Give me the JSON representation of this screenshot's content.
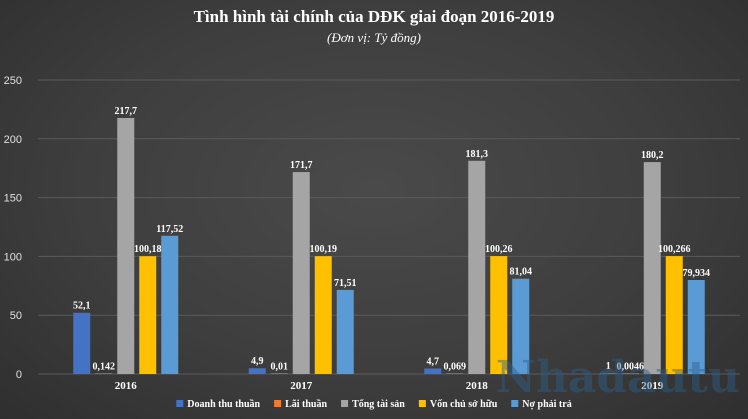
{
  "chart_data": {
    "type": "bar",
    "title": "Tình hình tài chính của DĐK giai đoạn 2016-2019",
    "subtitle": "(Đơn vị: Tỷ đồng)",
    "categories": [
      "2016",
      "2017",
      "2018",
      "2019"
    ],
    "ylim": [
      0,
      250
    ],
    "yticks": [
      0,
      50,
      100,
      150,
      200,
      250
    ],
    "grid": true,
    "legend_position": "bottom",
    "series": [
      {
        "name": "Doanh thu thuần",
        "color": "#4472c4",
        "values": [
          52.1,
          4.9,
          4.7,
          1
        ],
        "labels": [
          "52,1",
          "4,9",
          "4,7",
          "1"
        ]
      },
      {
        "name": "Lãi thuần",
        "color": "#ed7d31",
        "values": [
          0.142,
          0.01,
          0.069,
          0.0046
        ],
        "labels": [
          "0,142",
          "0,01",
          "0,069",
          "0,0046"
        ]
      },
      {
        "name": "Tổng tài sản",
        "color": "#a5a5a5",
        "values": [
          217.7,
          171.7,
          181.3,
          180.2
        ],
        "labels": [
          "217,7",
          "171,7",
          "181,3",
          "180,2"
        ]
      },
      {
        "name": "Vốn chủ sở hữu",
        "color": "#ffc000",
        "values": [
          100.18,
          100.19,
          100.26,
          100.266
        ],
        "labels": [
          "100,18",
          "100,19",
          "100,26",
          "100,266"
        ]
      },
      {
        "name": "Nợ phải trả",
        "color": "#5b9bd5",
        "values": [
          117.52,
          71.51,
          81.04,
          79.934
        ],
        "labels": [
          "117,52",
          "71,51",
          "81,04",
          "79,934"
        ]
      }
    ]
  },
  "watermark": "Nhadautu",
  "colors": {
    "background": "#3e3e3e",
    "gridline": "#5a5a5a",
    "text": "#ffffff"
  }
}
